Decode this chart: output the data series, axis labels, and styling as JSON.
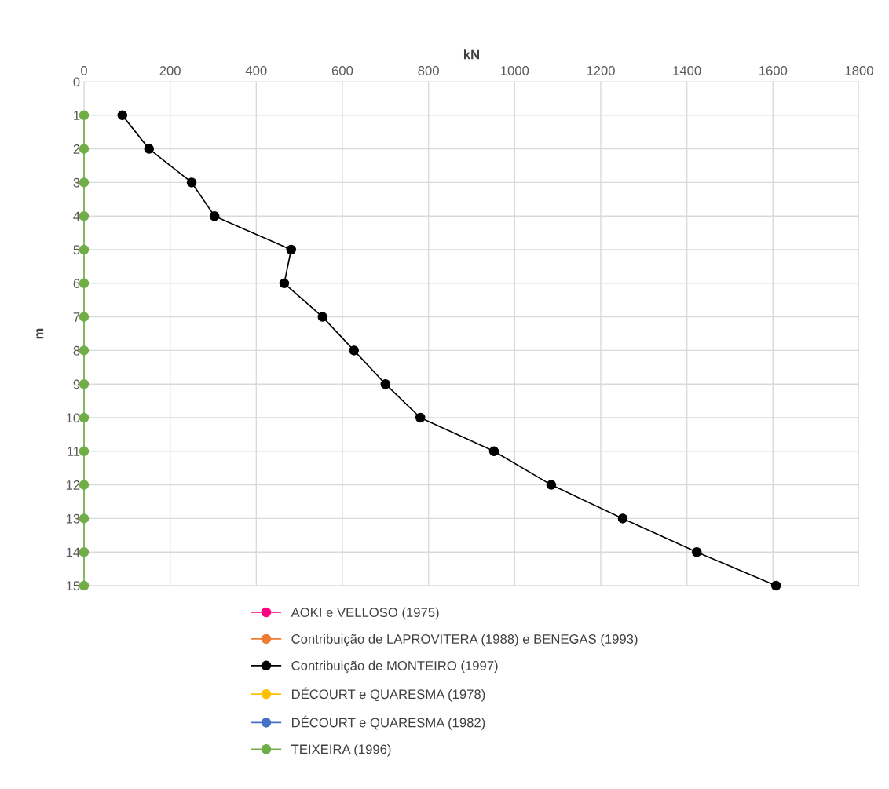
{
  "chart_data": {
    "type": "line",
    "xlabel": "kN",
    "ylabel": "m",
    "xlim": [
      0,
      1800
    ],
    "xticks": [
      0,
      200,
      400,
      600,
      800,
      1000,
      1200,
      1400,
      1600,
      1800
    ],
    "ylim": [
      15,
      0
    ],
    "yticks": [
      0,
      1,
      2,
      3,
      4,
      5,
      6,
      7,
      8,
      9,
      10,
      11,
      12,
      13,
      14,
      15
    ],
    "x": [
      1,
      2,
      3,
      4,
      5,
      6,
      7,
      8,
      9,
      10,
      11,
      12,
      13,
      14,
      15
    ],
    "orientation": "horizontal",
    "grid": true,
    "legend": "bottom",
    "marker": "circle",
    "line_style": "solid",
    "series": [
      {
        "name": "AOKI e VELLOSO (1975)",
        "color": "#ff0080",
        "values": [
          null,
          null,
          null,
          null,
          null,
          null,
          null,
          null,
          null,
          null,
          null,
          null,
          null,
          null,
          null
        ]
      },
      {
        "name": "Contribuição de LAPROVITERA (1988) e BENEGAS (1993)",
        "color": "#ed7d31",
        "values": [
          null,
          null,
          null,
          null,
          null,
          null,
          null,
          null,
          null,
          null,
          null,
          null,
          null,
          null,
          null
        ]
      },
      {
        "name": "Contribuição de MONTEIRO (1997)",
        "color": "#000000",
        "values": [
          89,
          151,
          250,
          303,
          481,
          465,
          554,
          627,
          700,
          781,
          952,
          1085,
          1251,
          1423,
          1607
        ]
      },
      {
        "name": "DÉCOURT e QUARESMA (1978)",
        "color": "#ffc000",
        "values": [
          null,
          null,
          null,
          null,
          null,
          null,
          null,
          null,
          null,
          null,
          null,
          null,
          null,
          null,
          null
        ]
      },
      {
        "name": "DÉCOURT e QUARESMA (1982)",
        "color": "#4472c4",
        "values": [
          null,
          null,
          null,
          null,
          null,
          null,
          null,
          null,
          null,
          null,
          null,
          null,
          null,
          null,
          null
        ]
      },
      {
        "name": "TEIXEIRA (1996)",
        "color": "#70ad47",
        "values": [
          0,
          0,
          0,
          0,
          0,
          0,
          0,
          0,
          0,
          0,
          0,
          0,
          0,
          0,
          0
        ]
      }
    ]
  }
}
